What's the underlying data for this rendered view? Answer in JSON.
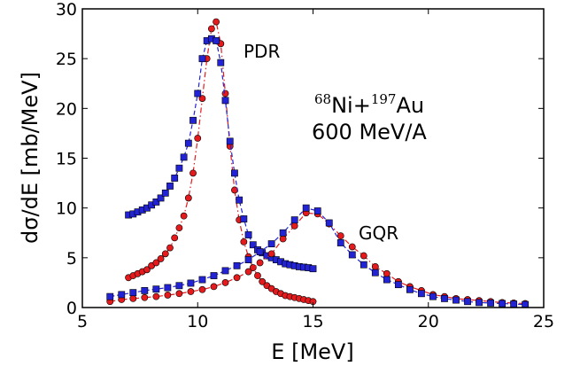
{
  "chart_data": {
    "type": "scatter",
    "xlabel": "E [MeV]",
    "ylabel": "dσ/dE [mb/MeV]",
    "xlim": [
      5,
      25
    ],
    "ylim": [
      0,
      30
    ],
    "xticks": [
      5,
      10,
      15,
      20,
      25
    ],
    "yticks": [
      0,
      5,
      10,
      15,
      20,
      25,
      30
    ],
    "grid": false,
    "annotations": {
      "pdr": "PDR",
      "gqr": "GQR",
      "reaction_mass_a": "68",
      "reaction_elem_a": "Ni+",
      "reaction_mass_b": "197",
      "reaction_elem_b": "Au",
      "energy": "600 MeV/A"
    },
    "colors": {
      "red_series": "#e41a1c",
      "blue_series": "#2323d6",
      "marker_edge": "#000000",
      "red_line": "#e41a1c",
      "blue_line": "#2323d6"
    },
    "series": [
      {
        "marker": "circle",
        "color": "#e41a1c",
        "line": "dashdot",
        "x": [
          7.0,
          7.2,
          7.4,
          7.6,
          7.8,
          8.0,
          8.2,
          8.4,
          8.6,
          8.8,
          9.0,
          9.2,
          9.4,
          9.6,
          9.8,
          10.0,
          10.2,
          10.4,
          10.6,
          10.8,
          11.0,
          11.2,
          11.4,
          11.6,
          11.8,
          12.0,
          12.2,
          12.4,
          12.6,
          12.8,
          13.0,
          13.2,
          13.4,
          13.6,
          13.8,
          14.0,
          14.2,
          14.4,
          14.6,
          14.8,
          15.0
        ],
        "y": [
          3.0,
          3.2,
          3.4,
          3.6,
          3.8,
          4.2,
          4.5,
          4.9,
          5.4,
          6.0,
          7.0,
          8.0,
          9.2,
          11.0,
          13.5,
          17.0,
          21.0,
          25.0,
          28.0,
          28.7,
          26.5,
          21.5,
          16.2,
          11.8,
          8.8,
          6.6,
          5.1,
          4.0,
          3.2,
          2.6,
          2.2,
          1.9,
          1.6,
          1.4,
          1.2,
          1.1,
          1.0,
          0.9,
          0.8,
          0.7,
          0.6
        ]
      },
      {
        "marker": "square",
        "color": "#2323d6",
        "line": "dashed",
        "x": [
          7.0,
          7.2,
          7.4,
          7.6,
          7.8,
          8.0,
          8.2,
          8.4,
          8.6,
          8.8,
          9.0,
          9.2,
          9.4,
          9.6,
          9.8,
          10.0,
          10.2,
          10.4,
          10.6,
          10.8,
          11.0,
          11.2,
          11.4,
          11.6,
          11.8,
          12.0,
          12.2,
          12.4,
          12.6,
          12.8,
          13.0,
          13.2,
          13.4,
          13.6,
          13.8,
          14.0,
          14.2,
          14.4,
          14.6,
          14.8,
          15.0
        ],
        "y": [
          9.3,
          9.4,
          9.6,
          9.8,
          10.0,
          10.3,
          10.6,
          11.0,
          11.5,
          12.2,
          13.0,
          14.0,
          15.1,
          16.5,
          18.8,
          21.5,
          25.0,
          26.8,
          27.0,
          26.8,
          24.6,
          20.8,
          16.7,
          13.5,
          10.8,
          8.9,
          7.3,
          6.3,
          5.8,
          5.5,
          5.2,
          5.0,
          4.8,
          4.6,
          4.4,
          4.3,
          4.2,
          4.1,
          4.05,
          4.0,
          3.9
        ]
      },
      {
        "marker": "circle",
        "color": "#e41a1c",
        "line": "dashdot",
        "x": [
          6.2,
          6.7,
          7.2,
          7.7,
          8.2,
          8.7,
          9.2,
          9.7,
          10.2,
          10.7,
          11.2,
          11.7,
          12.2,
          12.7,
          13.2,
          13.7,
          14.2,
          14.7,
          15.2,
          15.7,
          16.2,
          16.7,
          17.2,
          17.7,
          18.2,
          18.7,
          19.2,
          19.7,
          20.2,
          20.7,
          21.2,
          21.7,
          22.2,
          22.7,
          23.2,
          23.7,
          24.2
        ],
        "y": [
          0.6,
          0.8,
          0.9,
          1.0,
          1.1,
          1.25,
          1.4,
          1.6,
          1.8,
          2.1,
          2.5,
          3.0,
          3.6,
          4.5,
          5.4,
          6.9,
          8.2,
          9.5,
          9.4,
          8.4,
          7.2,
          6.1,
          5.2,
          4.1,
          3.4,
          2.6,
          2.1,
          1.7,
          1.3,
          1.1,
          0.9,
          0.8,
          0.7,
          0.6,
          0.5,
          0.45,
          0.4
        ]
      },
      {
        "marker": "square",
        "color": "#2323d6",
        "line": "dashed",
        "x": [
          6.2,
          6.7,
          7.2,
          7.7,
          8.2,
          8.7,
          9.2,
          9.7,
          10.2,
          10.7,
          11.2,
          11.7,
          12.2,
          12.7,
          13.2,
          13.7,
          14.2,
          14.7,
          15.2,
          15.7,
          16.2,
          16.7,
          17.2,
          17.7,
          18.2,
          18.7,
          19.2,
          19.7,
          20.2,
          20.7,
          21.2,
          21.7,
          22.2,
          22.7,
          23.2,
          23.7,
          24.2
        ],
        "y": [
          1.1,
          1.3,
          1.5,
          1.7,
          1.85,
          2.0,
          2.2,
          2.45,
          2.8,
          3.2,
          3.7,
          4.2,
          4.8,
          5.6,
          6.4,
          7.5,
          8.8,
          10.0,
          9.7,
          8.5,
          6.5,
          5.3,
          4.3,
          3.5,
          2.8,
          2.3,
          1.8,
          1.4,
          1.1,
          0.9,
          0.75,
          0.6,
          0.5,
          0.45,
          0.4,
          0.35,
          0.3
        ]
      }
    ]
  }
}
